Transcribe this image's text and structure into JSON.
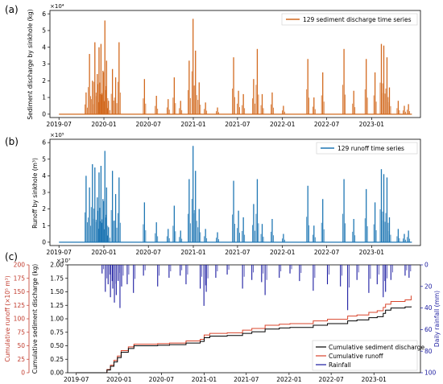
{
  "chart_data": [
    {
      "panel": "(a)",
      "type": "line",
      "ylabel": "Sediment discharge by sinkhole (kg)",
      "multiplier": "×10⁴",
      "ylim": [
        -0.2,
        6.2
      ],
      "yticks": [
        "0",
        "1",
        "2",
        "3",
        "4",
        "5",
        "6"
      ],
      "xticks": [
        "2019-07",
        "2020-01",
        "2020-07",
        "2021-01",
        "2021-07",
        "2022-01",
        "2022-07",
        "2023-01"
      ],
      "legend_position": "top-right",
      "colors": {
        "series": "#d2691e"
      },
      "series": [
        {
          "name": "129 sediment discharge time series",
          "points": [
            [
              "2019-10-20",
              1.3
            ],
            [
              "2019-11-03",
              3.6
            ],
            [
              "2019-11-15",
              2.0
            ],
            [
              "2019-11-25",
              4.3
            ],
            [
              "2019-12-05",
              2.4
            ],
            [
              "2019-12-12",
              4.0
            ],
            [
              "2019-12-20",
              4.2
            ],
            [
              "2019-12-28",
              2.6
            ],
            [
              "2020-01-05",
              5.6
            ],
            [
              "2020-01-12",
              3.2
            ],
            [
              "2020-01-20",
              0.8
            ],
            [
              "2020-02-05",
              2.7
            ],
            [
              "2020-02-18",
              2.2
            ],
            [
              "2020-03-03",
              4.3
            ],
            [
              "2020-06-15",
              2.1
            ],
            [
              "2020-08-03",
              1.1
            ],
            [
              "2020-09-20",
              0.9
            ],
            [
              "2020-10-15",
              2.2
            ],
            [
              "2020-11-10",
              0.8
            ],
            [
              "2020-12-15",
              3.2
            ],
            [
              "2020-12-31",
              5.7
            ],
            [
              "2021-01-10",
              3.8
            ],
            [
              "2021-01-25",
              1.9
            ],
            [
              "2021-02-20",
              0.7
            ],
            [
              "2021-04-10",
              0.4
            ],
            [
              "2021-06-15",
              3.4
            ],
            [
              "2021-07-05",
              1.4
            ],
            [
              "2021-07-25",
              1.2
            ],
            [
              "2021-09-05",
              2.1
            ],
            [
              "2021-09-20",
              3.9
            ],
            [
              "2021-10-10",
              1.2
            ],
            [
              "2021-11-20",
              1.3
            ],
            [
              "2022-01-05",
              0.5
            ],
            [
              "2022-04-15",
              3.3
            ],
            [
              "2022-05-10",
              1.0
            ],
            [
              "2022-06-15",
              2.5
            ],
            [
              "2022-09-10",
              3.9
            ],
            [
              "2022-10-20",
              1.4
            ],
            [
              "2022-12-10",
              3.3
            ],
            [
              "2023-01-15",
              2.5
            ],
            [
              "2023-02-10",
              4.2
            ],
            [
              "2023-02-20",
              4.1
            ],
            [
              "2023-03-05",
              3.4
            ],
            [
              "2023-03-15",
              1.6
            ],
            [
              "2023-04-20",
              0.8
            ],
            [
              "2023-05-15",
              0.5
            ],
            [
              "2023-06-01",
              0.6
            ]
          ]
        }
      ]
    },
    {
      "panel": "(b)",
      "type": "line",
      "ylabel": "Runoff by sinkhole (m³)",
      "multiplier": "×10⁵",
      "ylim": [
        -0.2,
        6.2
      ],
      "yticks": [
        "0",
        "1",
        "2",
        "3",
        "4",
        "5",
        "6"
      ],
      "xticks": [
        "2019-07",
        "2020-01",
        "2020-07",
        "2021-01",
        "2021-07",
        "2022-01",
        "2022-07",
        "2023-01"
      ],
      "legend_position": "top-right",
      "colors": {
        "series": "#1f77b4"
      },
      "series": [
        {
          "name": "129 runoff time series",
          "points": [
            [
              "2019-10-20",
              4.0
            ],
            [
              "2019-11-03",
              3.3
            ],
            [
              "2019-11-15",
              4.7
            ],
            [
              "2019-11-25",
              4.5
            ],
            [
              "2019-12-05",
              2.7
            ],
            [
              "2019-12-12",
              4.2
            ],
            [
              "2019-12-20",
              4.6
            ],
            [
              "2019-12-28",
              2.6
            ],
            [
              "2020-01-05",
              5.5
            ],
            [
              "2020-01-12",
              3.3
            ],
            [
              "2020-01-20",
              0.9
            ],
            [
              "2020-02-05",
              4.3
            ],
            [
              "2020-02-18",
              2.9
            ],
            [
              "2020-03-03",
              3.9
            ],
            [
              "2020-06-15",
              2.4
            ],
            [
              "2020-08-03",
              1.2
            ],
            [
              "2020-09-20",
              0.8
            ],
            [
              "2020-10-15",
              2.2
            ],
            [
              "2020-11-10",
              0.7
            ],
            [
              "2020-12-15",
              3.8
            ],
            [
              "2020-12-31",
              5.8
            ],
            [
              "2021-01-10",
              4.3
            ],
            [
              "2021-01-25",
              2.0
            ],
            [
              "2021-02-20",
              0.8
            ],
            [
              "2021-04-10",
              0.6
            ],
            [
              "2021-06-15",
              3.7
            ],
            [
              "2021-07-05",
              1.9
            ],
            [
              "2021-07-25",
              1.5
            ],
            [
              "2021-09-05",
              2.3
            ],
            [
              "2021-09-20",
              3.8
            ],
            [
              "2021-10-10",
              1.1
            ],
            [
              "2021-11-20",
              1.4
            ],
            [
              "2022-01-05",
              0.5
            ],
            [
              "2022-04-15",
              3.4
            ],
            [
              "2022-05-10",
              1.0
            ],
            [
              "2022-06-15",
              2.6
            ],
            [
              "2022-09-10",
              3.8
            ],
            [
              "2022-10-20",
              1.4
            ],
            [
              "2022-12-10",
              3.2
            ],
            [
              "2023-01-15",
              2.4
            ],
            [
              "2023-02-10",
              4.4
            ],
            [
              "2023-02-20",
              4.1
            ],
            [
              "2023-03-05",
              3.9
            ],
            [
              "2023-03-15",
              1.5
            ],
            [
              "2023-04-20",
              0.8
            ],
            [
              "2023-05-15",
              0.5
            ],
            [
              "2023-06-01",
              0.7
            ]
          ]
        }
      ]
    },
    {
      "panel": "(c)",
      "type": "line",
      "ylabel_left_inner": "Cumulative sediment discharge (kg)",
      "ylabel_left_outer": "Cumulative runoff (×10⁵ m³)",
      "ylabel_right": "Daily rainfall (mm)",
      "multiplier": "×10⁷",
      "ylim_inner": [
        0,
        2.0
      ],
      "yticks_inner": [
        "0.00",
        "0.25",
        "0.50",
        "0.75",
        "1.00",
        "1.25",
        "1.50",
        "1.75",
        "2.00"
      ],
      "ylim_outer": [
        0,
        200
      ],
      "yticks_outer": [
        "0",
        "25",
        "50",
        "75",
        "100",
        "125",
        "150",
        "175",
        "200"
      ],
      "ylim_right": [
        0,
        100
      ],
      "yticks_right": [
        "0",
        "20",
        "40",
        "60",
        "80",
        "100"
      ],
      "xticks": [
        "2019-07",
        "2020-01",
        "2020-07",
        "2021-01",
        "2021-07",
        "2022-01",
        "2022-07",
        "2023-01"
      ],
      "legend_position": "lower-right",
      "colors": {
        "sediment": "#000000",
        "runoff": "#d9442b",
        "rainfall": "#1a1aa0",
        "outer_axis": "#c0392b",
        "right_axis": "#1a1aa0"
      },
      "series": [
        {
          "name": "Cumulative sediment discharge",
          "points": [
            [
              "2019-07-01",
              0
            ],
            [
              "2019-10-15",
              0
            ],
            [
              "2019-11-10",
              0.05
            ],
            [
              "2019-11-25",
              0.12
            ],
            [
              "2019-12-10",
              0.2
            ],
            [
              "2019-12-25",
              0.28
            ],
            [
              "2020-01-10",
              0.38
            ],
            [
              "2020-02-10",
              0.45
            ],
            [
              "2020-03-05",
              0.5
            ],
            [
              "2020-06-15",
              0.51
            ],
            [
              "2020-08-05",
              0.52
            ],
            [
              "2020-10-15",
              0.55
            ],
            [
              "2020-12-15",
              0.58
            ],
            [
              "2021-01-01",
              0.65
            ],
            [
              "2021-01-25",
              0.68
            ],
            [
              "2021-04-10",
              0.69
            ],
            [
              "2021-06-15",
              0.73
            ],
            [
              "2021-07-25",
              0.76
            ],
            [
              "2021-09-20",
              0.81
            ],
            [
              "2021-11-20",
              0.83
            ],
            [
              "2022-01-05",
              0.84
            ],
            [
              "2022-04-15",
              0.88
            ],
            [
              "2022-06-15",
              0.91
            ],
            [
              "2022-09-10",
              0.96
            ],
            [
              "2022-10-20",
              0.98
            ],
            [
              "2022-12-10",
              1.02
            ],
            [
              "2023-01-15",
              1.04
            ],
            [
              "2023-02-10",
              1.1
            ],
            [
              "2023-02-20",
              1.16
            ],
            [
              "2023-03-15",
              1.2
            ],
            [
              "2023-05-15",
              1.22
            ],
            [
              "2023-06-10",
              1.23
            ]
          ]
        },
        {
          "name": "Cumulative runoff",
          "points": [
            [
              "2019-07-01",
              0
            ],
            [
              "2019-10-15",
              0
            ],
            [
              "2019-11-10",
              6
            ],
            [
              "2019-11-25",
              14
            ],
            [
              "2019-12-10",
              23
            ],
            [
              "2019-12-25",
              31
            ],
            [
              "2020-01-10",
              41
            ],
            [
              "2020-02-10",
              48
            ],
            [
              "2020-03-05",
              53
            ],
            [
              "2020-06-15",
              54
            ],
            [
              "2020-08-05",
              55
            ],
            [
              "2020-10-15",
              59
            ],
            [
              "2020-12-15",
              62
            ],
            [
              "2021-01-01",
              70
            ],
            [
              "2021-01-25",
              73
            ],
            [
              "2021-04-10",
              74
            ],
            [
              "2021-06-15",
              79
            ],
            [
              "2021-07-25",
              82
            ],
            [
              "2021-09-20",
              88
            ],
            [
              "2021-11-20",
              90
            ],
            [
              "2022-01-05",
              91
            ],
            [
              "2022-04-15",
              96
            ],
            [
              "2022-06-15",
              99
            ],
            [
              "2022-09-10",
              105
            ],
            [
              "2022-10-20",
              107
            ],
            [
              "2022-12-10",
              112
            ],
            [
              "2023-01-15",
              115
            ],
            [
              "2023-02-10",
              121
            ],
            [
              "2023-02-20",
              127
            ],
            [
              "2023-03-15",
              132
            ],
            [
              "2023-05-15",
              135
            ],
            [
              "2023-06-10",
              143
            ]
          ]
        },
        {
          "name": "Rainfall",
          "bars": [
            [
              "2019-10-20",
              8
            ],
            [
              "2019-11-03",
              25
            ],
            [
              "2019-11-15",
              18
            ],
            [
              "2019-11-25",
              30
            ],
            [
              "2019-12-05",
              22
            ],
            [
              "2019-12-12",
              35
            ],
            [
              "2019-12-20",
              28
            ],
            [
              "2019-12-28",
              15
            ],
            [
              "2020-01-05",
              40
            ],
            [
              "2020-01-12",
              20
            ],
            [
              "2020-02-05",
              18
            ],
            [
              "2020-03-03",
              26
            ],
            [
              "2020-04-15",
              10
            ],
            [
              "2020-06-15",
              20
            ],
            [
              "2020-08-03",
              12
            ],
            [
              "2020-09-20",
              10
            ],
            [
              "2020-10-15",
              18
            ],
            [
              "2020-12-15",
              22
            ],
            [
              "2020-12-31",
              38
            ],
            [
              "2021-01-10",
              25
            ],
            [
              "2021-02-20",
              12
            ],
            [
              "2021-04-10",
              9
            ],
            [
              "2021-06-15",
              22
            ],
            [
              "2021-07-25",
              14
            ],
            [
              "2021-09-05",
              16
            ],
            [
              "2021-09-20",
              28
            ],
            [
              "2021-11-20",
              12
            ],
            [
              "2022-01-05",
              8
            ],
            [
              "2022-02-15",
              15
            ],
            [
              "2022-04-15",
              24
            ],
            [
              "2022-06-15",
              18
            ],
            [
              "2022-08-10",
              20
            ],
            [
              "2022-09-10",
              42
            ],
            [
              "2022-10-20",
              14
            ],
            [
              "2022-12-10",
              26
            ],
            [
              "2023-01-15",
              18
            ],
            [
              "2023-02-10",
              30
            ],
            [
              "2023-02-20",
              25
            ],
            [
              "2023-03-15",
              14
            ],
            [
              "2023-05-15",
              10
            ],
            [
              "2023-06-01",
              12
            ]
          ]
        }
      ]
    }
  ]
}
